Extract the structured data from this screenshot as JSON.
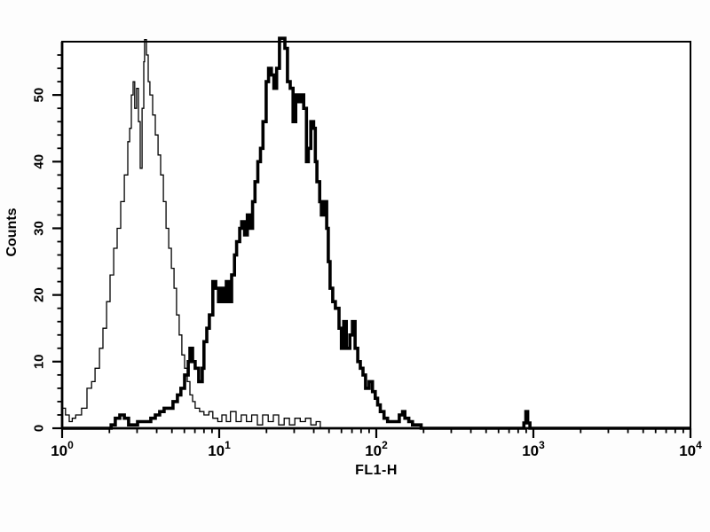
{
  "chart_data": {
    "type": "line",
    "subtype": "flow-cytometry-histogram-overlay",
    "title": "",
    "xlabel": "FL1-H",
    "ylabel": "Counts",
    "x_scale": "log10",
    "xlim": [
      1,
      10000
    ],
    "ylim": [
      0,
      58
    ],
    "x_major_ticks": [
      1,
      10,
      100,
      1000,
      10000
    ],
    "x_tick_display": {
      "base": "10",
      "exponents": [
        "0",
        "1",
        "2",
        "3",
        "4"
      ]
    },
    "x_minor_ticks": "2-9 within each decade",
    "y_major_ticks": [
      0,
      10,
      20,
      30,
      40,
      50
    ],
    "y_minor_tick_step": 2,
    "grid": false,
    "legend": false,
    "line_color": "#000000",
    "background": "#ffffff",
    "series": [
      {
        "name": "thin_line_histogram",
        "stroke_width": 1.3,
        "peak": {
          "x": 3.35,
          "counts": 58
        },
        "points": [
          [
            1.0,
            3
          ],
          [
            1.05,
            2
          ],
          [
            1.11,
            1
          ],
          [
            1.16,
            1.5
          ],
          [
            1.22,
            2
          ],
          [
            1.33,
            3
          ],
          [
            1.44,
            6
          ],
          [
            1.54,
            7
          ],
          [
            1.62,
            9
          ],
          [
            1.73,
            12
          ],
          [
            1.82,
            15
          ],
          [
            1.92,
            19
          ],
          [
            2.02,
            23
          ],
          [
            2.13,
            27
          ],
          [
            2.24,
            30
          ],
          [
            2.36,
            34
          ],
          [
            2.49,
            38
          ],
          [
            2.62,
            43
          ],
          [
            2.69,
            45
          ],
          [
            2.76,
            50
          ],
          [
            2.83,
            52
          ],
          [
            2.9,
            48
          ],
          [
            2.98,
            51
          ],
          [
            3.06,
            46
          ],
          [
            3.14,
            39
          ],
          [
            3.23,
            48
          ],
          [
            3.31,
            55
          ],
          [
            3.35,
            58.3
          ],
          [
            3.44,
            56
          ],
          [
            3.53,
            52
          ],
          [
            3.62,
            50
          ],
          [
            3.77,
            47
          ],
          [
            3.92,
            44
          ],
          [
            4.08,
            41
          ],
          [
            4.24,
            38
          ],
          [
            4.41,
            34
          ],
          [
            4.59,
            30
          ],
          [
            4.77,
            27
          ],
          [
            4.96,
            24
          ],
          [
            5.16,
            21
          ],
          [
            5.35,
            17
          ],
          [
            5.56,
            14
          ],
          [
            5.78,
            11
          ],
          [
            6.02,
            9
          ],
          [
            6.26,
            7
          ],
          [
            6.51,
            5
          ],
          [
            6.77,
            4
          ],
          [
            7.03,
            3
          ],
          [
            7.5,
            2.5
          ],
          [
            8.0,
            2
          ],
          [
            8.6,
            2.5
          ],
          [
            9.1,
            1.5
          ],
          [
            9.8,
            1
          ],
          [
            10.4,
            2
          ],
          [
            11.1,
            1
          ],
          [
            11.8,
            2.5
          ],
          [
            12.8,
            1
          ],
          [
            13.8,
            2
          ],
          [
            14.9,
            1
          ],
          [
            16.1,
            2
          ],
          [
            17.5,
            0.5
          ],
          [
            18.9,
            2
          ],
          [
            20.5,
            1
          ],
          [
            22.1,
            2
          ],
          [
            23.9,
            0.5
          ],
          [
            25.9,
            1.5
          ],
          [
            28.0,
            0.5
          ],
          [
            30.3,
            1.5
          ],
          [
            32.8,
            1
          ],
          [
            35.4,
            1.5
          ],
          [
            38.3,
            0.5
          ],
          [
            41.4,
            1
          ],
          [
            44.0,
            0
          ],
          [
            10000,
            0
          ]
        ]
      },
      {
        "name": "thick_line_histogram",
        "stroke_width": 3.6,
        "peak": {
          "x": 25,
          "counts": 58
        },
        "points": [
          [
            1.0,
            0
          ],
          [
            1.9,
            0
          ],
          [
            2.05,
            0.5
          ],
          [
            2.18,
            1.5
          ],
          [
            2.33,
            2
          ],
          [
            2.49,
            1.5
          ],
          [
            2.65,
            0.5
          ],
          [
            2.83,
            0.5
          ],
          [
            3.02,
            1
          ],
          [
            3.23,
            1
          ],
          [
            3.44,
            1
          ],
          [
            3.67,
            1.5
          ],
          [
            3.92,
            2
          ],
          [
            4.18,
            2.5
          ],
          [
            4.46,
            3
          ],
          [
            4.77,
            3
          ],
          [
            5.08,
            4
          ],
          [
            5.42,
            5
          ],
          [
            5.7,
            6
          ],
          [
            6.02,
            8
          ],
          [
            6.35,
            10
          ],
          [
            6.51,
            12
          ],
          [
            6.77,
            10
          ],
          [
            7.03,
            9
          ],
          [
            7.4,
            7
          ],
          [
            7.8,
            9
          ],
          [
            8.0,
            13
          ],
          [
            8.33,
            15
          ],
          [
            8.66,
            17
          ],
          [
            9.1,
            22
          ],
          [
            9.5,
            21
          ],
          [
            9.9,
            19
          ],
          [
            10.3,
            21
          ],
          [
            10.7,
            19
          ],
          [
            11.1,
            22
          ],
          [
            11.5,
            19
          ],
          [
            12.0,
            23
          ],
          [
            12.5,
            26
          ],
          [
            12.9,
            28
          ],
          [
            13.5,
            30
          ],
          [
            13.9,
            31
          ],
          [
            14.5,
            29
          ],
          [
            15.1,
            32
          ],
          [
            15.6,
            30
          ],
          [
            16.3,
            34
          ],
          [
            16.9,
            37
          ],
          [
            17.6,
            40
          ],
          [
            18.3,
            42
          ],
          [
            19.0,
            46
          ],
          [
            19.9,
            52
          ],
          [
            20.6,
            54
          ],
          [
            21.5,
            53
          ],
          [
            22.3,
            51
          ],
          [
            23.2,
            54
          ],
          [
            24.2,
            58.5
          ],
          [
            25.2,
            58.5
          ],
          [
            26.2,
            57
          ],
          [
            27.2,
            52
          ],
          [
            28.3,
            51
          ],
          [
            29.5,
            46
          ],
          [
            30.7,
            50
          ],
          [
            31.9,
            49
          ],
          [
            33.2,
            50
          ],
          [
            34.5,
            48
          ],
          [
            35.9,
            40
          ],
          [
            36.9,
            42
          ],
          [
            38.3,
            46
          ],
          [
            39.9,
            45
          ],
          [
            40.9,
            40
          ],
          [
            41.9,
            37
          ],
          [
            43.6,
            34
          ],
          [
            44.7,
            32
          ],
          [
            46.4,
            34
          ],
          [
            48.3,
            30
          ],
          [
            49.5,
            25
          ],
          [
            50.8,
            21
          ],
          [
            52.8,
            19
          ],
          [
            54.9,
            18
          ],
          [
            57.9,
            15
          ],
          [
            60.0,
            12
          ],
          [
            62.0,
            16
          ],
          [
            64.4,
            12
          ],
          [
            67.9,
            14
          ],
          [
            70.5,
            16
          ],
          [
            73.3,
            12
          ],
          [
            76.2,
            10
          ],
          [
            79.1,
            9
          ],
          [
            82.3,
            8
          ],
          [
            85.4,
            6
          ],
          [
            90.0,
            7
          ],
          [
            94.5,
            5.5
          ],
          [
            98.4,
            4.5
          ],
          [
            102,
            3.5
          ],
          [
            106,
            2.5
          ],
          [
            112,
            1.5
          ],
          [
            118,
            1
          ],
          [
            126,
            1
          ],
          [
            134,
            1
          ],
          [
            140,
            2
          ],
          [
            147,
            2.5
          ],
          [
            152,
            1.5
          ],
          [
            161,
            1
          ],
          [
            170,
            0.5
          ],
          [
            181,
            0.5
          ],
          [
            193,
            0
          ],
          [
            850,
            0
          ],
          [
            870,
            0.8
          ],
          [
            895,
            2.5
          ],
          [
            920,
            0.8
          ],
          [
            950,
            0
          ],
          [
            10000,
            0
          ]
        ]
      }
    ]
  }
}
